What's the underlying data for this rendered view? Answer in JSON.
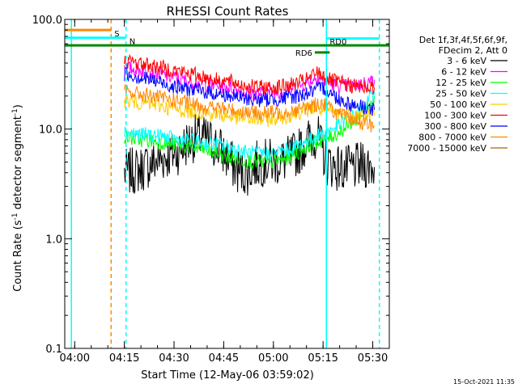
{
  "chart_data": {
    "type": "line",
    "title": "RHESSI Count Rates",
    "xlabel": "Start Time (12-May-06 03:59:02)",
    "ylabel_main": "Count Rate (s",
    "ylabel_sup1": "-1",
    "ylabel_mid": " detector segment",
    "ylabel_sup2": "-1",
    "ylabel_end": ")",
    "yscale": "log",
    "xlim_minutes": [
      -2,
      96
    ],
    "ylim": [
      0.1,
      100
    ],
    "x_ticks": [
      {
        "m": 1,
        "label": "04:00"
      },
      {
        "m": 16,
        "label": "04:15"
      },
      {
        "m": 31,
        "label": "04:30"
      },
      {
        "m": 46,
        "label": "04:45"
      },
      {
        "m": 61,
        "label": "05:00"
      },
      {
        "m": 76,
        "label": "05:15"
      },
      {
        "m": 91,
        "label": "05:30"
      }
    ],
    "y_ticks": [
      {
        "v": 0.1,
        "label": "0.1"
      },
      {
        "v": 1,
        "label": "1.0"
      },
      {
        "v": 10,
        "label": "10.0"
      },
      {
        "v": 100,
        "label": "100.0"
      }
    ],
    "legend_header": [
      "Det 1f,3f,4f,5f,6f,9f,",
      "FDecim 2, Att 0"
    ],
    "legend_position": "right",
    "series": [
      {
        "name": "3 - 6 keV",
        "color": "#000000",
        "x": [
          16,
          20,
          24,
          28,
          32,
          35,
          38,
          41,
          44,
          47,
          50,
          53,
          56,
          59,
          62,
          65,
          68,
          71,
          74,
          77,
          80,
          83,
          86,
          89,
          91.5
        ],
        "y": [
          4.0,
          4.2,
          4.8,
          5.5,
          6.2,
          7.5,
          8.5,
          8.0,
          7.0,
          5.5,
          4.2,
          4.0,
          4.8,
          5.0,
          5.0,
          5.2,
          6.0,
          7.5,
          9.0,
          5.0,
          4.5,
          4.3,
          4.5,
          4.7,
          4.5
        ]
      },
      {
        "name": "6 - 12 keV",
        "color": "#ff00ff",
        "x": [
          16,
          20,
          24,
          28,
          32,
          36,
          40,
          44,
          48,
          52,
          56,
          60,
          64,
          68,
          72,
          74,
          76,
          78,
          80,
          84,
          88,
          91.5
        ],
        "y": [
          36,
          35,
          33,
          31,
          29,
          27,
          26,
          25,
          24,
          22,
          21,
          21.5,
          22,
          24,
          27,
          30,
          28,
          26,
          25,
          24.5,
          26,
          28
        ]
      },
      {
        "name": "12 - 25 keV",
        "color": "#00ff00",
        "x": [
          16,
          20,
          24,
          28,
          32,
          36,
          40,
          44,
          48,
          52,
          56,
          60,
          64,
          68,
          72,
          76,
          80,
          84,
          88,
          91.5
        ],
        "y": [
          8.5,
          8.0,
          7.8,
          7.5,
          7.2,
          6.8,
          6.5,
          6.0,
          5.5,
          5.2,
          5.0,
          5.0,
          5.2,
          6.0,
          7.2,
          8.0,
          9.0,
          11,
          14,
          20
        ]
      },
      {
        "name": "25 - 50 keV",
        "color": "#00ffff",
        "x": [
          16,
          20,
          24,
          28,
          32,
          36,
          40,
          44,
          48,
          52,
          56,
          60,
          64,
          68,
          72,
          76,
          80,
          84,
          88,
          91.5
        ],
        "y": [
          9.5,
          9.0,
          8.8,
          8.5,
          8.0,
          7.8,
          7.5,
          7.2,
          6.8,
          6.2,
          6.0,
          6.0,
          6.3,
          7.0,
          8.0,
          9.0,
          10.5,
          12.5,
          15,
          22
        ]
      },
      {
        "name": "50 - 100 keV",
        "color": "#ffcc00",
        "x": [
          16,
          20,
          24,
          28,
          32,
          36,
          40,
          44,
          48,
          52,
          56,
          60,
          64,
          68,
          72,
          76,
          80,
          84,
          88,
          91.5
        ],
        "y": [
          18,
          17.5,
          17,
          16,
          15,
          14.5,
          14,
          13.5,
          13,
          12.5,
          12.2,
          12.3,
          12.8,
          14,
          15.5,
          15,
          14,
          13.5,
          13.5,
          13.2
        ]
      },
      {
        "name": "100 - 300 keV",
        "color": "#ff0000",
        "x": [
          16,
          20,
          24,
          28,
          32,
          36,
          40,
          44,
          48,
          52,
          56,
          60,
          64,
          68,
          72,
          74,
          76,
          78,
          80,
          84,
          88,
          91.5
        ],
        "y": [
          42,
          40,
          38,
          36,
          34,
          32,
          30,
          28,
          27,
          25,
          24,
          24,
          24.5,
          26,
          29,
          33,
          31,
          28,
          27,
          25,
          24,
          24
        ]
      },
      {
        "name": "300 - 800 keV",
        "color": "#0000ff",
        "x": [
          16,
          20,
          24,
          28,
          32,
          36,
          40,
          44,
          48,
          52,
          56,
          60,
          64,
          68,
          72,
          76,
          80,
          84,
          88,
          91.5
        ],
        "y": [
          32,
          30,
          28,
          26,
          24,
          23,
          22,
          21,
          20,
          19,
          18.5,
          18.5,
          19,
          20,
          21.5,
          24,
          19.5,
          17,
          16,
          15
        ]
      },
      {
        "name": "800 - 7000 keV",
        "color": "#ff8800",
        "x": [
          16,
          20,
          24,
          28,
          32,
          36,
          40,
          44,
          48,
          52,
          56,
          60,
          64,
          68,
          72,
          76,
          80,
          84,
          88,
          91.5
        ],
        "y": [
          22,
          21,
          20,
          19,
          18,
          17,
          16,
          15.5,
          15,
          14.5,
          14,
          14,
          14.3,
          15,
          16,
          17.5,
          14,
          12.5,
          11.5,
          10.5
        ]
      },
      {
        "name": "7000 - 15000 keV",
        "color": "#aa6600",
        "x": [],
        "y": []
      }
    ],
    "annotations": [
      {
        "kind": "bar",
        "label": "S",
        "color": "#ff8800",
        "x1": -2,
        "x2": 12,
        "y": 80
      },
      {
        "kind": "bar",
        "label": "N",
        "color": "#00ffff",
        "x1": -2,
        "x2": 16.5,
        "y": 68
      },
      {
        "kind": "bar",
        "label": "",
        "color": "#00ffff",
        "x1": 77,
        "x2": 93,
        "y": 67
      },
      {
        "kind": "bar",
        "label": "RD0",
        "color": "#008800",
        "x1": -2,
        "x2": 96,
        "y": 58
      },
      {
        "kind": "bar",
        "label": "RD6",
        "color": "#008800",
        "x1": 73.5,
        "x2": 78,
        "y": 50
      }
    ],
    "vlines": [
      {
        "x": 0,
        "color": "#00ffff",
        "style": "solid"
      },
      {
        "x": 12,
        "color": "#ff8800",
        "style": "dashed"
      },
      {
        "x": 16.5,
        "color": "#00ffff",
        "style": "dashed"
      },
      {
        "x": 77,
        "color": "#00ffff",
        "style": "solid"
      },
      {
        "x": 93,
        "color": "#00ffff",
        "style": "dashed"
      }
    ],
    "footer_timestamp": "15-Oct-2021 11:35"
  }
}
